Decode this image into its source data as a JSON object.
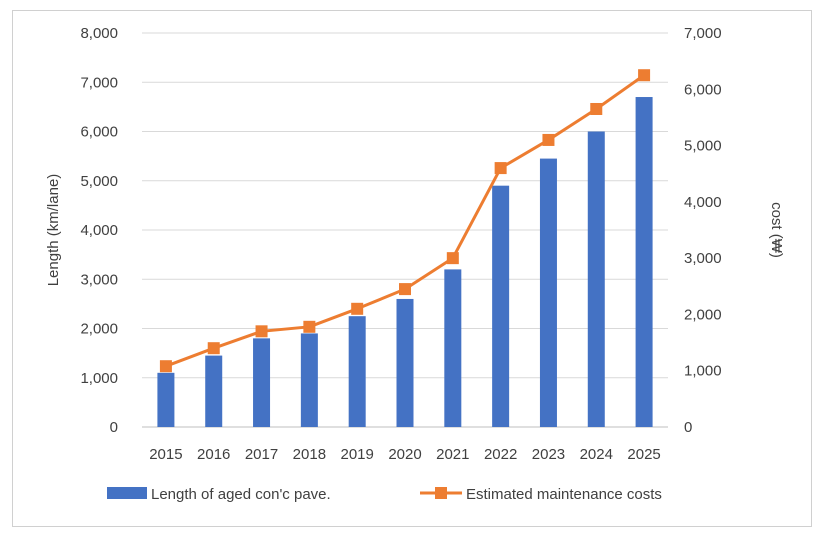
{
  "chart_data": {
    "type": "bar",
    "categories": [
      "2015",
      "2016",
      "2017",
      "2018",
      "2019",
      "2020",
      "2021",
      "2022",
      "2023",
      "2024",
      "2025"
    ],
    "series": [
      {
        "name": "Length of aged con'c pave.",
        "type": "bar",
        "axis": "left",
        "color": "#4472C4",
        "values": [
          1100,
          1450,
          1800,
          1900,
          2250,
          2600,
          3200,
          4900,
          5450,
          6000,
          6700
        ]
      },
      {
        "name": "Estimated maintenance costs",
        "type": "line",
        "axis": "right",
        "color": "#ED7D31",
        "values": [
          1080,
          1400,
          1700,
          1780,
          2100,
          2450,
          3000,
          4600,
          5100,
          5650,
          6250
        ]
      }
    ],
    "ylabel": "Length (km/lane)",
    "y2label": "cost (₩)",
    "ylim": [
      0,
      8000
    ],
    "y2lim": [
      0,
      7000
    ],
    "yticks": [
      "0",
      "1,000",
      "2,000",
      "3,000",
      "4,000",
      "5,000",
      "6,000",
      "7,000",
      "8,000"
    ],
    "y2ticks": [
      "0",
      "1,000",
      "2,000",
      "3,000",
      "4,000",
      "5,000",
      "6,000",
      "7,000"
    ],
    "grid": true,
    "legend_position": "bottom"
  }
}
